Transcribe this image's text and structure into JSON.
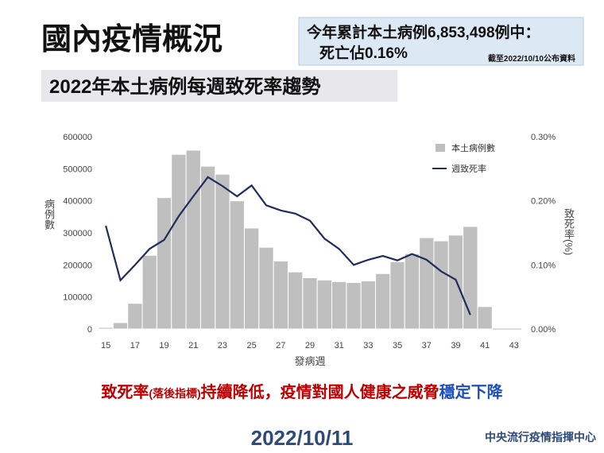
{
  "chart_data": {
    "type": "bar_line",
    "title": "國內疫情概況",
    "note_lines": [
      "今年累計本土病例6,853,498例中：",
      "死亡佔0.16%"
    ],
    "note_source": "截至2022/10/10公布資料",
    "subtitle": "2022年本土病例每週致死率趨勢",
    "x_label": "發病週",
    "y_label": "病例數",
    "y2_label": "致死率(%)",
    "x": [
      15,
      16,
      17,
      18,
      19,
      20,
      21,
      22,
      23,
      24,
      25,
      26,
      27,
      28,
      29,
      30,
      31,
      32,
      33,
      34,
      35,
      36,
      37,
      38,
      39,
      40,
      41
    ],
    "xlim": [
      14.5,
      43.5
    ],
    "xticks": [
      15,
      17,
      19,
      21,
      23,
      25,
      27,
      29,
      31,
      33,
      35,
      37,
      39,
      41,
      43
    ],
    "ylim": [
      0,
      600000
    ],
    "yticks": [
      0,
      100000,
      200000,
      300000,
      400000,
      500000,
      600000
    ],
    "y2lim": [
      0,
      0.3
    ],
    "y2ticks": [
      {
        "value": 0,
        "label": "0.00%"
      },
      {
        "value": 0.1,
        "label": "0.10%"
      },
      {
        "value": 0.2,
        "label": "0.20%"
      },
      {
        "value": 0.3,
        "label": "0.30%"
      }
    ],
    "series": [
      {
        "name": "本土病例數",
        "type": "bar",
        "color": "#bfbfbf",
        "values": [
          5000,
          20000,
          80000,
          230000,
          410000,
          545000,
          558000,
          508000,
          483000,
          400000,
          315000,
          255000,
          212000,
          178000,
          160000,
          153000,
          148000,
          145000,
          150000,
          173000,
          210000,
          235000,
          285000,
          275000,
          293000,
          320000,
          70000
        ]
      },
      {
        "name": "週致死率",
        "type": "line",
        "axis": "y2",
        "color": "#1f2d5a",
        "values": [
          0.161,
          0.076,
          0.1,
          0.125,
          0.139,
          0.176,
          0.207,
          0.237,
          0.223,
          0.207,
          0.224,
          0.193,
          0.185,
          0.18,
          0.169,
          0.141,
          0.125,
          0.1,
          0.108,
          0.114,
          0.107,
          0.117,
          0.108,
          0.09,
          0.077,
          0.022,
          null
        ]
      }
    ],
    "legend": "upper right",
    "message": [
      "致死率",
      "(落後指標)",
      "持續降低，疫情對國人健康之威脅",
      "穩定下降"
    ],
    "date": "2022/10/11",
    "organization": "中央流行疫情指揮中心"
  }
}
